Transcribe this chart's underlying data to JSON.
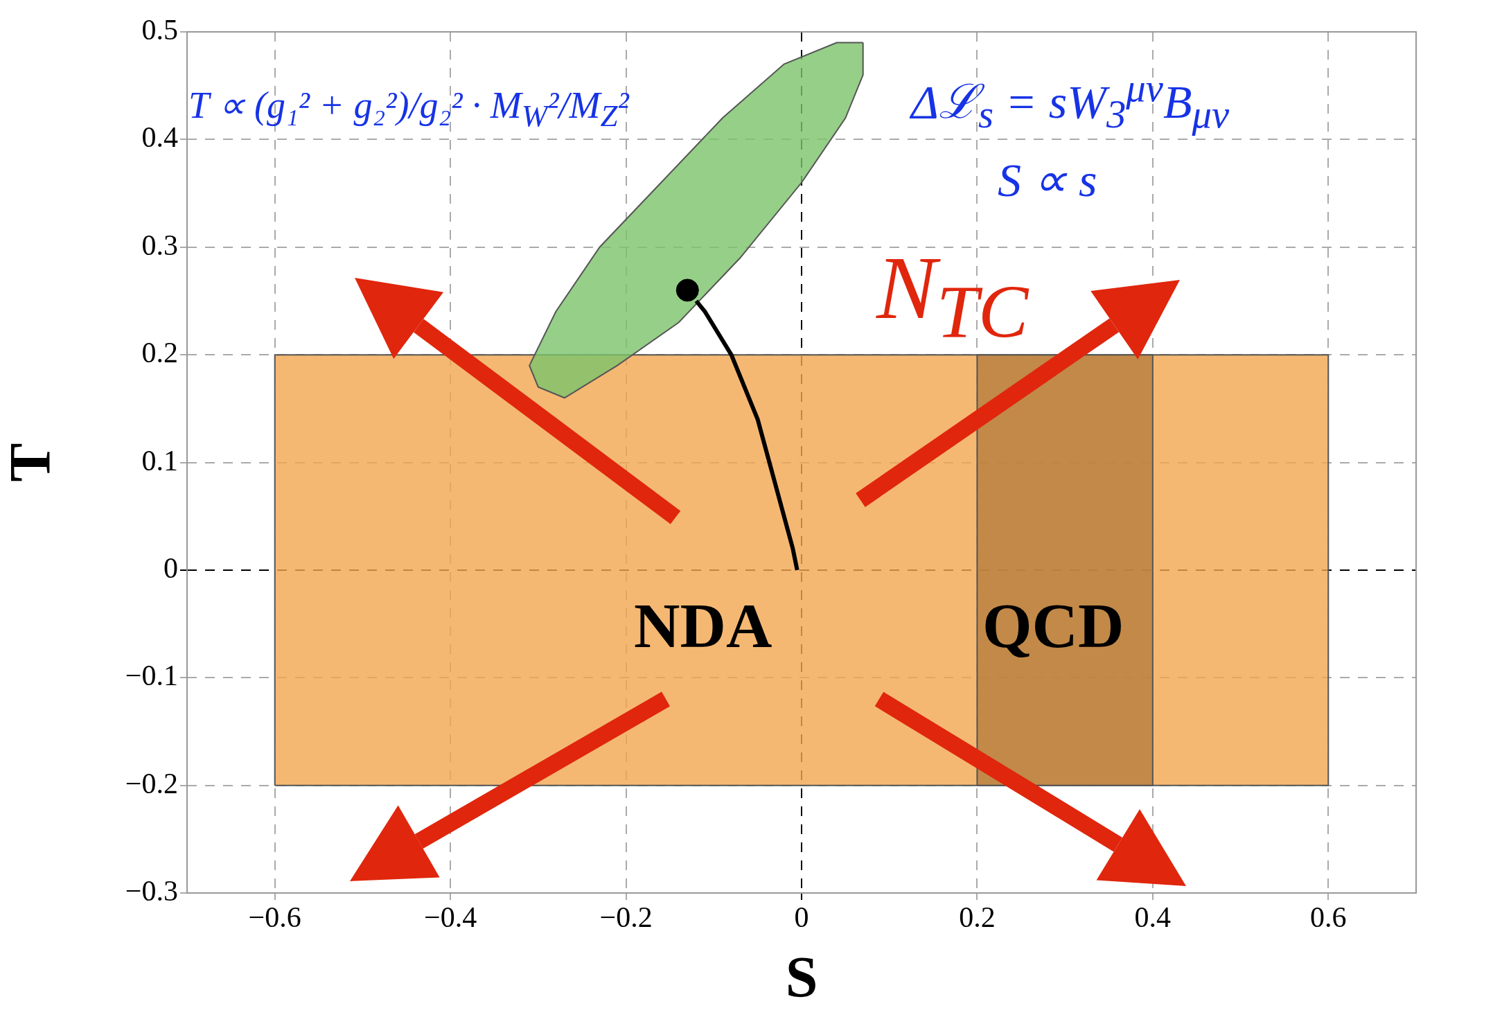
{
  "chart_data": {
    "type": "line",
    "xlabel": "S",
    "ylabel": "T",
    "xlim": [
      -0.7,
      0.7
    ],
    "xticks": [
      -0.6,
      -0.4,
      -0.2,
      0,
      0.2,
      0.4,
      0.6
    ],
    "ylim": [
      -0.3,
      0.5
    ],
    "yticks": [
      -0.3,
      -0.2,
      -0.1,
      0,
      0.1,
      0.2,
      0.3,
      0.4,
      0.5
    ],
    "grid": true,
    "series": [
      {
        "type": "area",
        "color": "#f3a650",
        "x": [
          -0.6,
          0.6,
          0.6,
          -0.6,
          -0.6
        ],
        "values": [
          -0.2,
          -0.2,
          0.2,
          0.2,
          -0.2
        ]
      },
      {
        "type": "area",
        "color": "#b57d3e",
        "x": [
          0.2,
          0.4,
          0.4,
          0.2,
          0.2
        ],
        "values": [
          -0.2,
          -0.2,
          0.2,
          0.2,
          -0.2
        ]
      },
      {
        "type": "area",
        "color": "#7cc36a",
        "x": [
          0.07,
          0.07,
          0.05,
          0,
          -0.07,
          -0.14,
          -0.21,
          -0.27,
          -0.3,
          -0.31,
          -0.28,
          -0.23,
          -0.16,
          -0.09,
          -0.02,
          0.04,
          0.07
        ],
        "values": [
          0.49,
          0.46,
          0.42,
          0.36,
          0.29,
          0.23,
          0.19,
          0.16,
          0.17,
          0.19,
          0.24,
          0.3,
          0.36,
          0.42,
          0.47,
          0.49,
          0.49
        ]
      },
      {
        "type": "line",
        "color": "#000000",
        "x": [
          -0.12,
          -0.11,
          -0.08,
          -0.05,
          -0.03,
          -0.01,
          -0.005
        ],
        "values": [
          0.25,
          0.24,
          0.2,
          0.14,
          0.08,
          0.02,
          0
        ]
      },
      {
        "type": "scatter",
        "color": "#000000",
        "marker": "circle",
        "x": [
          -0.13
        ],
        "values": [
          0.26
        ]
      }
    ],
    "annotations": [
      "T ∝ (g₁² + g₂²)/g₂² · M$_{W}$²/M$_{Z}$²",
      "Δℒ$_{s}$ = sW$_{3}$$^{μν}$B$_{μν}$",
      "S ∝ s",
      "N$_{TC}$",
      "NDA",
      "QCD"
    ]
  }
}
